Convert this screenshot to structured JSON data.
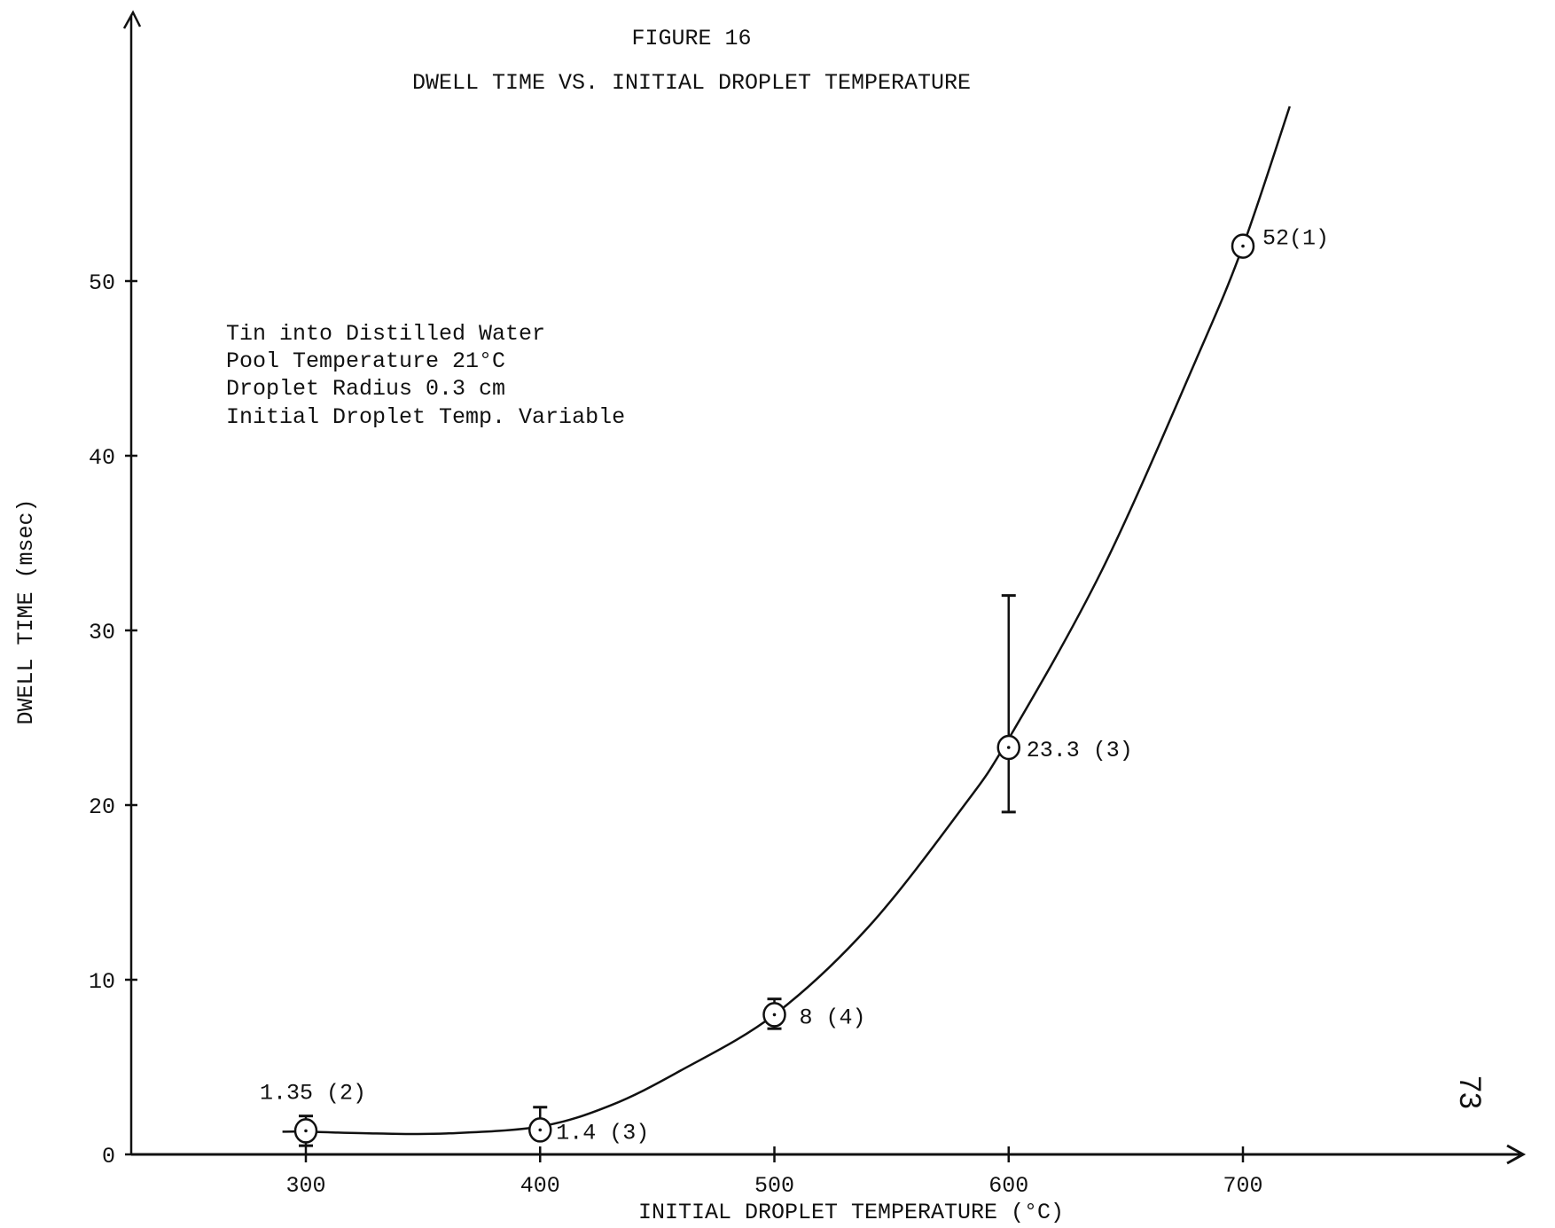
{
  "chart_data": {
    "type": "scatter",
    "title": "FIGURE 16",
    "subtitle": "DWELL TIME VS. INITIAL DROPLET TEMPERATURE",
    "xlabel": "INITIAL DROPLET TEMPERATURE (°C)",
    "ylabel": "DWELL TIME (msec)",
    "x_ticks": [
      "300",
      "400",
      "500",
      "600",
      "700"
    ],
    "y_ticks": [
      "0",
      "10",
      "20",
      "30",
      "40",
      "50"
    ],
    "xlim": [
      225,
      1000
    ],
    "ylim": [
      0,
      65
    ],
    "grid": false,
    "annotations": [
      "Tin into Distilled Water",
      "Pool Temperature  21°C",
      "Droplet Radius  0.3 cm",
      "Initial Droplet Temp. Variable"
    ],
    "points": [
      {
        "x": 300,
        "y": 1.35,
        "label": "1.35 (2)",
        "err_low": 0.5,
        "err_high": 2.2
      },
      {
        "x": 400,
        "y": 1.4,
        "label": "1.4 (3)",
        "err_low": 0.9,
        "err_high": 2.7
      },
      {
        "x": 500,
        "y": 8,
        "label": "8 (4)",
        "err_low": 7.2,
        "err_high": 8.9
      },
      {
        "x": 600,
        "y": 23.3,
        "label": "23.3 (3)",
        "err_low": 19.6,
        "err_high": 32.0
      },
      {
        "x": 700,
        "y": 52,
        "label": "52(1)"
      }
    ],
    "curve": {
      "x": [
        290,
        300,
        330,
        360,
        400,
        430,
        460,
        500,
        540,
        580,
        600,
        640,
        680,
        700,
        720
      ],
      "y": [
        1.3,
        1.3,
        1.2,
        1.2,
        1.6,
        2.8,
        4.8,
        8.0,
        13.0,
        19.8,
        23.8,
        33.5,
        45.5,
        52.0,
        60.0
      ]
    }
  },
  "page_number": "73"
}
